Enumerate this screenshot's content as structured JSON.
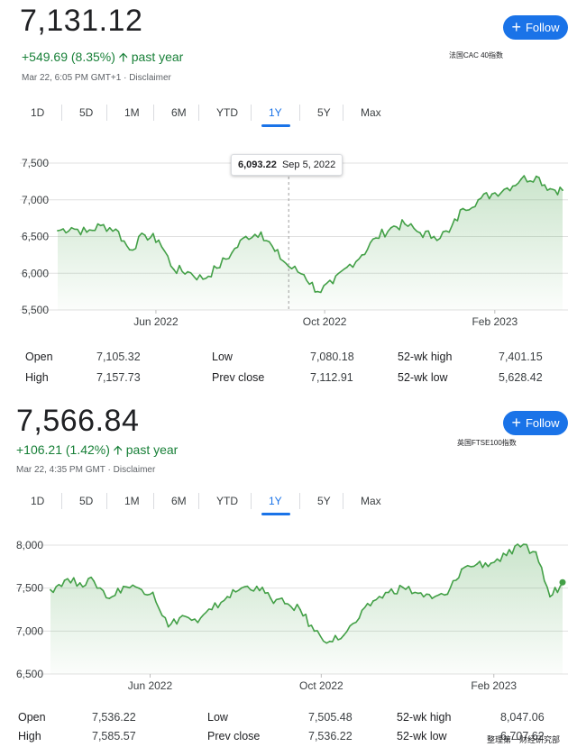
{
  "colors": {
    "line": "#43a047",
    "accent": "#1a73e8",
    "positive": "#188038"
  },
  "panels": [
    {
      "price": "7,131.12",
      "change": "+549.69 (8.35%)",
      "change_suffix": "past year",
      "timestamp": "Mar 22, 6:05 PM GMT+1 · Disclaimer",
      "follow_label": "Follow",
      "note": "法国CAC 40指数",
      "tabs": [
        "1D",
        "5D",
        "1M",
        "6M",
        "YTD",
        "1Y",
        "5Y",
        "Max"
      ],
      "active_tab": "1Y",
      "tooltip": {
        "value": "6,093.22",
        "date": "Sep 5, 2022"
      },
      "stats": {
        "open_label": "Open",
        "open": "7,105.32",
        "high_label": "High",
        "high": "7,157.73",
        "low_label": "Low",
        "low": "7,080.18",
        "prev_close_label": "Prev close",
        "prev_close": "7,112.91",
        "wk52_high_label": "52-wk high",
        "wk52_high": "7,401.15",
        "wk52_low_label": "52-wk low",
        "wk52_low": "5,628.42"
      }
    },
    {
      "price": "7,566.84",
      "change": "+106.21 (1.42%)",
      "change_suffix": "past year",
      "timestamp": "Mar 22, 4:35 PM GMT · Disclaimer",
      "follow_label": "Follow",
      "note": "英国FTSE100指数",
      "tabs": [
        "1D",
        "5D",
        "1M",
        "6M",
        "YTD",
        "1Y",
        "5Y",
        "Max"
      ],
      "active_tab": "1Y",
      "stats": {
        "open_label": "Open",
        "open": "7,536.22",
        "high_label": "High",
        "high": "7,585.57",
        "low_label": "Low",
        "low": "7,505.48",
        "prev_close_label": "Prev close",
        "prev_close": "7,536.22",
        "wk52_high_label": "52-wk high",
        "wk52_high": "8,047.06",
        "wk52_low_label": "52-wk low",
        "wk52_low": "6,707.62"
      }
    }
  ],
  "footer_note": "整理第一财经研究部",
  "chart_data": [
    {
      "type": "area",
      "yticks": [
        "7,500",
        "7,000",
        "6,500",
        "6,000",
        "5,500"
      ],
      "ylim": [
        5500,
        7500
      ],
      "xticks": [
        "Jun 2022",
        "Oct 2022",
        "Feb 2023"
      ],
      "x": [
        "2022-03-22",
        "2022-04-01",
        "2022-04-12",
        "2022-04-22",
        "2022-05-03",
        "2022-05-13",
        "2022-05-24",
        "2022-06-03",
        "2022-06-14",
        "2022-06-24",
        "2022-07-05",
        "2022-07-15",
        "2022-07-26",
        "2022-08-05",
        "2022-08-16",
        "2022-08-26",
        "2022-09-05",
        "2022-09-16",
        "2022-09-26",
        "2022-10-07",
        "2022-10-17",
        "2022-10-28",
        "2022-11-07",
        "2022-11-18",
        "2022-11-28",
        "2022-12-09",
        "2022-12-19",
        "2022-12-30",
        "2023-01-09",
        "2023-01-20",
        "2023-01-30",
        "2023-02-10",
        "2023-02-20",
        "2023-03-03",
        "2023-03-13",
        "2023-03-22"
      ],
      "values": [
        6580,
        6620,
        6560,
        6650,
        6600,
        6320,
        6520,
        6450,
        6050,
        6020,
        5920,
        6070,
        6280,
        6500,
        6560,
        6300,
        6093,
        5980,
        5750,
        5860,
        6080,
        6250,
        6480,
        6620,
        6670,
        6550,
        6500,
        6560,
        6880,
        7000,
        7080,
        7160,
        7280,
        7320,
        7150,
        7131
      ],
      "tooltip_index": 16
    },
    {
      "type": "area",
      "yticks": [
        "8,000",
        "7,500",
        "7,000",
        "6,500"
      ],
      "ylim": [
        6500,
        8000
      ],
      "xticks": [
        "Jun 2022",
        "Oct 2022",
        "Feb 2023"
      ],
      "x": [
        "2022-03-22",
        "2022-04-01",
        "2022-04-12",
        "2022-04-22",
        "2022-05-03",
        "2022-05-13",
        "2022-05-24",
        "2022-06-03",
        "2022-06-14",
        "2022-06-24",
        "2022-07-05",
        "2022-07-15",
        "2022-07-26",
        "2022-08-05",
        "2022-08-16",
        "2022-08-26",
        "2022-09-05",
        "2022-09-16",
        "2022-09-26",
        "2022-10-07",
        "2022-10-17",
        "2022-10-28",
        "2022-11-07",
        "2022-11-18",
        "2022-11-28",
        "2022-12-09",
        "2022-12-19",
        "2022-12-30",
        "2023-01-09",
        "2023-01-20",
        "2023-01-30",
        "2023-02-10",
        "2023-02-20",
        "2023-03-03",
        "2023-03-13",
        "2023-03-22"
      ],
      "values": [
        7480,
        7590,
        7560,
        7580,
        7380,
        7520,
        7500,
        7450,
        7050,
        7180,
        7100,
        7250,
        7400,
        7500,
        7520,
        7380,
        7320,
        7250,
        7000,
        6880,
        6950,
        7150,
        7350,
        7450,
        7510,
        7440,
        7380,
        7430,
        7720,
        7780,
        7790,
        7880,
        7980,
        7920,
        7400,
        7567
      ]
    }
  ]
}
